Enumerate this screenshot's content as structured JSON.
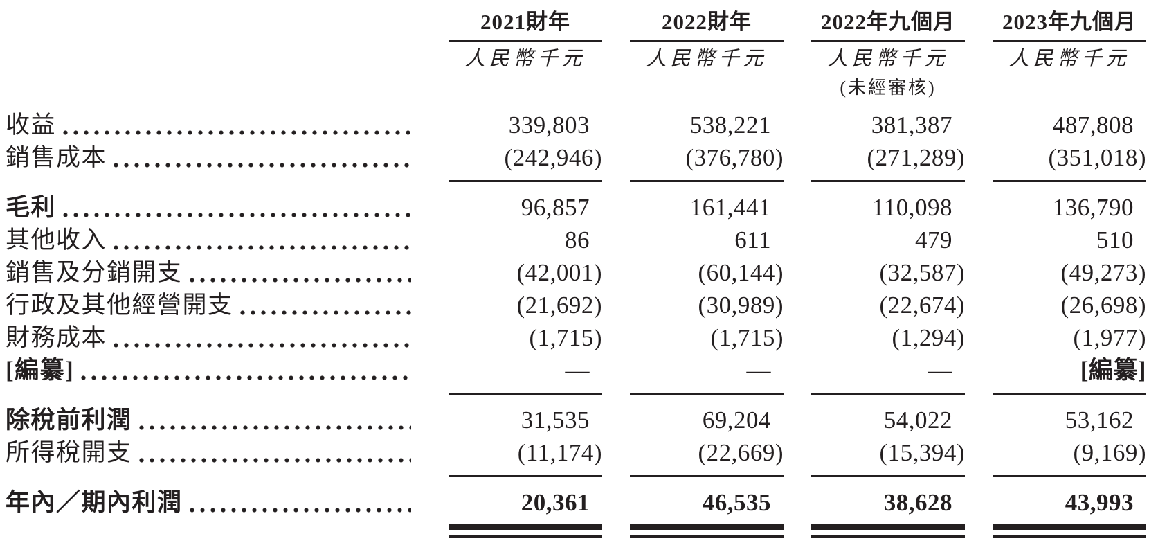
{
  "table": {
    "columns": [
      {
        "period": "2021財年",
        "unit": "人民幣千元",
        "note": ""
      },
      {
        "period": "2022財年",
        "unit": "人民幣千元",
        "note": ""
      },
      {
        "period": "2022年九個月",
        "unit": "人民幣千元",
        "note": "(未經審核)"
      },
      {
        "period": "2023年九個月",
        "unit": "人民幣千元",
        "note": ""
      }
    ],
    "rows": [
      {
        "label": "收益",
        "values": [
          "339,803",
          "538,221",
          "381,387",
          "487,808"
        ]
      },
      {
        "label": "銷售成本",
        "values": [
          "(242,946)",
          "(376,780)",
          "(271,289)",
          "(351,018)"
        ]
      },
      {
        "label": "毛利",
        "values": [
          "96,857",
          "161,441",
          "110,098",
          "136,790"
        ]
      },
      {
        "label": "其他收入",
        "values": [
          "86",
          "611",
          "479",
          "510"
        ]
      },
      {
        "label": "銷售及分銷開支",
        "values": [
          "(42,001)",
          "(60,144)",
          "(32,587)",
          "(49,273)"
        ]
      },
      {
        "label": "行政及其他經營開支",
        "values": [
          "(21,692)",
          "(30,989)",
          "(22,674)",
          "(26,698)"
        ]
      },
      {
        "label": "財務成本",
        "values": [
          "(1,715)",
          "(1,715)",
          "(1,294)",
          "(1,977)"
        ]
      },
      {
        "label": "[編纂]",
        "values": [
          "—",
          "—",
          "—",
          "[編纂]"
        ]
      },
      {
        "label": "除稅前利潤",
        "values": [
          "31,535",
          "69,204",
          "54,022",
          "53,162"
        ]
      },
      {
        "label": "所得稅開支",
        "values": [
          "(11,174)",
          "(22,669)",
          "(15,394)",
          "(9,169)"
        ]
      },
      {
        "label": "年內／期內利潤",
        "values": [
          "20,361",
          "46,535",
          "38,628",
          "43,993"
        ]
      }
    ],
    "text_color": "#231f20",
    "background_color": "#ffffff"
  }
}
